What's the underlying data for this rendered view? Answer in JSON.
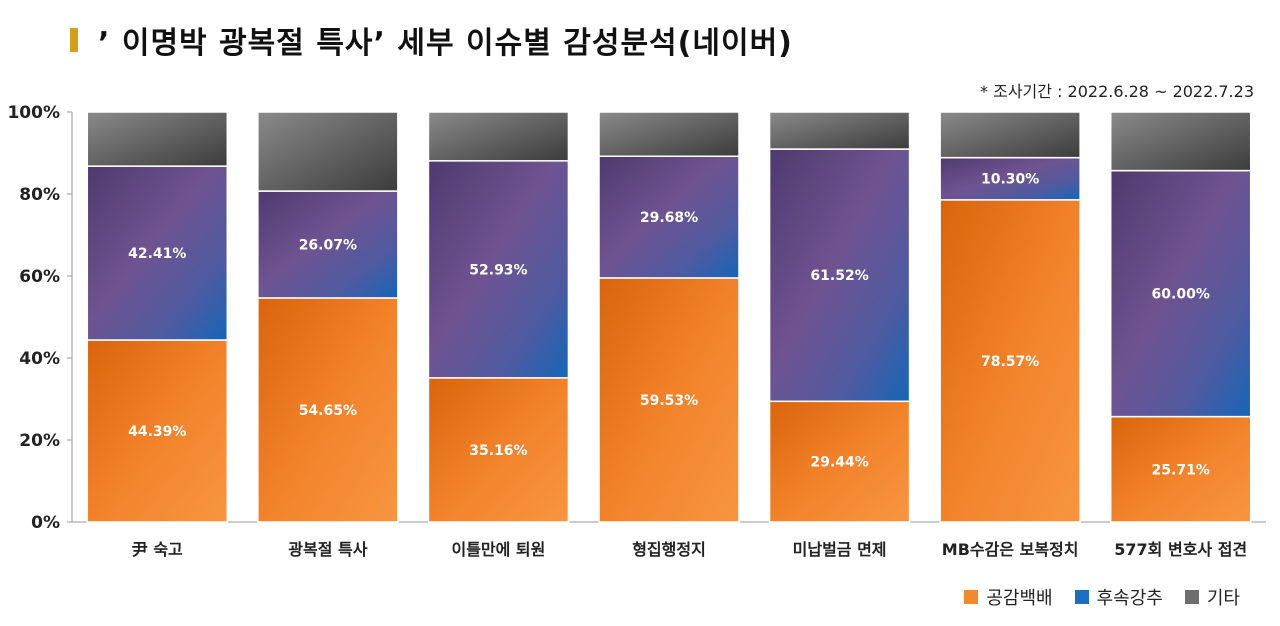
{
  "title": "’ 이명박 광복절 특사’ 세부 이슈별 감성분석(네이버)",
  "period_note": "* 조사기간 : 2022.6.28 ~ 2022.7.23",
  "chart_data": {
    "type": "bar",
    "stacked": true,
    "categories": [
      "尹 숙고",
      "광복절 특사",
      "이틀만에 퇴원",
      "형집행정지",
      "미납벌금 면제",
      "MB수감은 보복정치",
      "577회 변호사 접견"
    ],
    "series": [
      {
        "name": "공감백배",
        "values": [
          44.39,
          54.65,
          35.16,
          59.53,
          29.44,
          78.57,
          25.71
        ],
        "color": "#f08a2c",
        "labels": [
          "44.39%",
          "54.65%",
          "35.16%",
          "59.53%",
          "29.44%",
          "78.57%",
          "25.71%"
        ]
      },
      {
        "name": "후속강추",
        "values": [
          42.41,
          26.07,
          52.93,
          29.68,
          61.52,
          10.3,
          60.0
        ],
        "color": "#6a4c8c",
        "labels": [
          "42.41%",
          "26.07%",
          "52.93%",
          "29.68%",
          "61.52%",
          "10.30%",
          "60.00%"
        ]
      },
      {
        "name": "기타",
        "values": [
          13.2,
          19.28,
          11.91,
          10.79,
          9.04,
          11.13,
          14.29
        ],
        "color": "#707070"
      }
    ],
    "ylim": [
      0,
      100
    ],
    "yticks": [
      "0%",
      "20%",
      "40%",
      "60%",
      "80%",
      "100%"
    ],
    "grid": false,
    "legend": "bottom-right"
  }
}
